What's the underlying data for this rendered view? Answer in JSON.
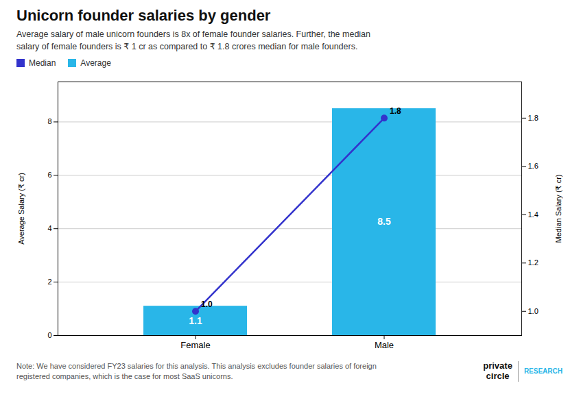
{
  "chart_data": {
    "type": "bar",
    "title": "Unicorn founder salaries by gender",
    "subtitle": "Average salary of male unicorn founders is 8x of female founder salaries. Further, the median\nsalary of female founders is ₹ 1 cr as compared to ₹ 1.8 crores median for male founders.",
    "categories": [
      "Female",
      "Male"
    ],
    "series": [
      {
        "name": "Median",
        "type": "line",
        "axis": "y2",
        "color": "#3333cc",
        "marker": "circle",
        "values": [
          1.0,
          1.8
        ],
        "value_labels": [
          "1.0",
          "1.8"
        ]
      },
      {
        "name": "Average",
        "type": "bar",
        "color": "#29b6e8",
        "values": [
          1.1,
          8.5
        ]
      }
    ],
    "ylabel": "Average Salary (₹ cr)",
    "y2label": "Median Salary (₹ cr)",
    "ylim": [
      0,
      9.5
    ],
    "yticks": [
      0,
      2,
      4,
      6,
      8
    ],
    "y2lim": [
      0.9,
      1.95
    ],
    "y2ticks": [
      {
        "value": 1.0,
        "label": "1.0"
      },
      1.2,
      1.4,
      1.6,
      1.8
    ],
    "grid": true,
    "data_labels": true,
    "legend": "top left",
    "note": "Note: We have considered FY23 salaries for this analysis. This analysis excludes founder salaries of foreign\nregistered companies, which is the case for most SaaS unicorns.",
    "annotations": [
      "private\ncircle",
      "RESEARCH"
    ]
  }
}
